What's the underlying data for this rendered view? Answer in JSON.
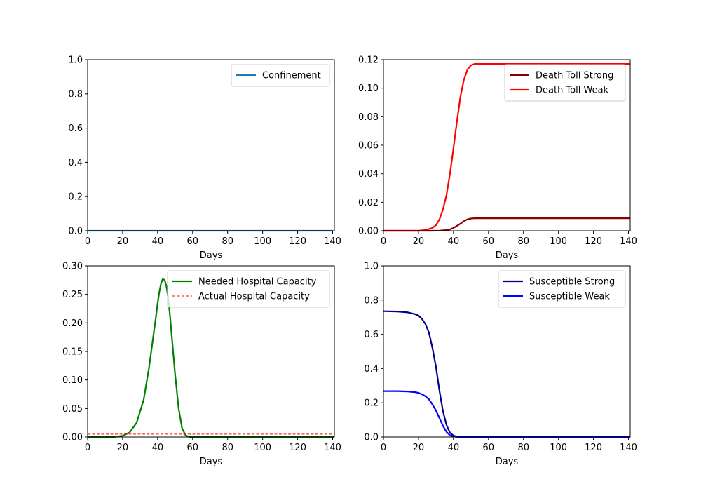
{
  "chart_data": [
    {
      "type": "line",
      "xlabel": "Days",
      "ylabel": "",
      "xlim": [
        0,
        141
      ],
      "ylim": [
        0,
        1.0
      ],
      "xticks": [
        0,
        20,
        40,
        60,
        80,
        100,
        120,
        140
      ],
      "xtick_labels": [
        "0",
        "20",
        "40",
        "60",
        "80",
        "100",
        "120",
        "140"
      ],
      "yticks": [
        0,
        0.2,
        0.4,
        0.6,
        0.8,
        1.0
      ],
      "ytick_labels": [
        "0.0",
        "0.2",
        "0.4",
        "0.6",
        "0.8",
        "1.0"
      ],
      "legend_position": "upper-right",
      "grid": false,
      "series": [
        {
          "name": "Confinement",
          "color": "#1f77b4",
          "dashed": false,
          "x": [
            0,
            20,
            40,
            60,
            80,
            100,
            120,
            140
          ],
          "y": [
            0,
            0,
            0,
            0,
            0,
            0,
            0,
            0
          ]
        }
      ]
    },
    {
      "type": "line",
      "xlabel": "Days",
      "ylabel": "",
      "xlim": [
        0,
        141
      ],
      "ylim": [
        0,
        0.12
      ],
      "xticks": [
        0,
        20,
        40,
        60,
        80,
        100,
        120,
        140
      ],
      "xtick_labels": [
        "0",
        "20",
        "40",
        "60",
        "80",
        "100",
        "120",
        "140"
      ],
      "yticks": [
        0,
        0.02,
        0.04,
        0.06,
        0.08,
        0.1,
        0.12
      ],
      "ytick_labels": [
        "0.00",
        "0.02",
        "0.04",
        "0.06",
        "0.08",
        "0.10",
        "0.12"
      ],
      "legend_position": "upper-right",
      "grid": false,
      "series": [
        {
          "name": "Death Toll Strong",
          "color": "#8b0000",
          "dashed": false,
          "x": [
            0,
            20,
            28,
            32,
            36,
            38,
            40,
            42,
            44,
            46,
            48,
            50,
            52,
            60,
            80,
            100,
            120,
            141
          ],
          "y": [
            0,
            0,
            0,
            0.0001,
            0.0005,
            0.001,
            0.002,
            0.0035,
            0.005,
            0.0068,
            0.008,
            0.0086,
            0.0088,
            0.0088,
            0.0088,
            0.0088,
            0.0088,
            0.0088
          ]
        },
        {
          "name": "Death Toll Weak",
          "color": "#ff0000",
          "dashed": false,
          "x": [
            0,
            20,
            24,
            28,
            30,
            32,
            34,
            36,
            38,
            40,
            42,
            44,
            46,
            48,
            50,
            52,
            55,
            60,
            80,
            100,
            120,
            141
          ],
          "y": [
            0,
            0,
            0.0005,
            0.002,
            0.004,
            0.008,
            0.015,
            0.025,
            0.04,
            0.058,
            0.077,
            0.094,
            0.106,
            0.113,
            0.116,
            0.117,
            0.117,
            0.117,
            0.117,
            0.117,
            0.117,
            0.117
          ]
        }
      ]
    },
    {
      "type": "line",
      "xlabel": "Days",
      "ylabel": "",
      "xlim": [
        0,
        141
      ],
      "ylim": [
        0,
        0.3
      ],
      "xticks": [
        0,
        20,
        40,
        60,
        80,
        100,
        120,
        140
      ],
      "xtick_labels": [
        "0",
        "20",
        "40",
        "60",
        "80",
        "100",
        "120",
        "140"
      ],
      "yticks": [
        0,
        0.05,
        0.1,
        0.15,
        0.2,
        0.25,
        0.3
      ],
      "ytick_labels": [
        "0.00",
        "0.05",
        "0.10",
        "0.15",
        "0.20",
        "0.25",
        "0.30"
      ],
      "legend_position": "upper-right",
      "grid": false,
      "series": [
        {
          "name": "Needed Hospital Capacity",
          "color": "#008000",
          "dashed": false,
          "x": [
            0,
            15,
            20,
            24,
            28,
            32,
            35,
            37,
            39,
            40,
            41,
            42,
            43,
            44,
            45,
            46,
            47,
            48,
            50,
            52,
            54,
            56,
            58,
            60,
            80,
            100,
            120,
            141
          ],
          "y": [
            0,
            0,
            0.002,
            0.008,
            0.025,
            0.065,
            0.12,
            0.165,
            0.21,
            0.235,
            0.255,
            0.27,
            0.277,
            0.275,
            0.265,
            0.245,
            0.215,
            0.18,
            0.11,
            0.05,
            0.015,
            0.003,
            0,
            0,
            0,
            0,
            0,
            0
          ]
        },
        {
          "name": "Actual Hospital Capacity",
          "color": "#ff0000",
          "dashed": true,
          "x": [
            0,
            141
          ],
          "y": [
            0.005,
            0.005
          ]
        }
      ]
    },
    {
      "type": "line",
      "xlabel": "Days",
      "ylabel": "",
      "xlim": [
        0,
        141
      ],
      "ylim": [
        0,
        1.0
      ],
      "xticks": [
        0,
        20,
        40,
        60,
        80,
        100,
        120,
        140
      ],
      "xtick_labels": [
        "0",
        "20",
        "40",
        "60",
        "80",
        "100",
        "120",
        "140"
      ],
      "yticks": [
        0,
        0.2,
        0.4,
        0.6,
        0.8,
        1.0
      ],
      "ytick_labels": [
        "0.0",
        "0.2",
        "0.4",
        "0.6",
        "0.8",
        "1.0"
      ],
      "legend_position": "upper-right",
      "grid": false,
      "series": [
        {
          "name": "Susceptible Strong",
          "color": "#00008b",
          "dashed": false,
          "x": [
            0,
            8,
            14,
            18,
            20,
            22,
            24,
            26,
            28,
            30,
            32,
            34,
            36,
            38,
            40,
            42,
            45,
            60,
            80,
            100,
            120,
            141
          ],
          "y": [
            0.735,
            0.733,
            0.728,
            0.718,
            0.71,
            0.69,
            0.66,
            0.61,
            0.52,
            0.41,
            0.27,
            0.15,
            0.07,
            0.025,
            0.008,
            0.002,
            0,
            0,
            0,
            0,
            0,
            0
          ]
        },
        {
          "name": "Susceptible Weak",
          "color": "#0000ff",
          "dashed": false,
          "x": [
            0,
            8,
            14,
            18,
            20,
            22,
            24,
            26,
            28,
            30,
            32,
            34,
            36,
            38,
            40,
            42,
            45,
            60,
            80,
            100,
            120,
            141
          ],
          "y": [
            0.268,
            0.268,
            0.266,
            0.262,
            0.258,
            0.25,
            0.238,
            0.22,
            0.19,
            0.155,
            0.11,
            0.065,
            0.03,
            0.01,
            0.003,
            0.001,
            0,
            0,
            0,
            0,
            0,
            0
          ]
        }
      ]
    }
  ]
}
